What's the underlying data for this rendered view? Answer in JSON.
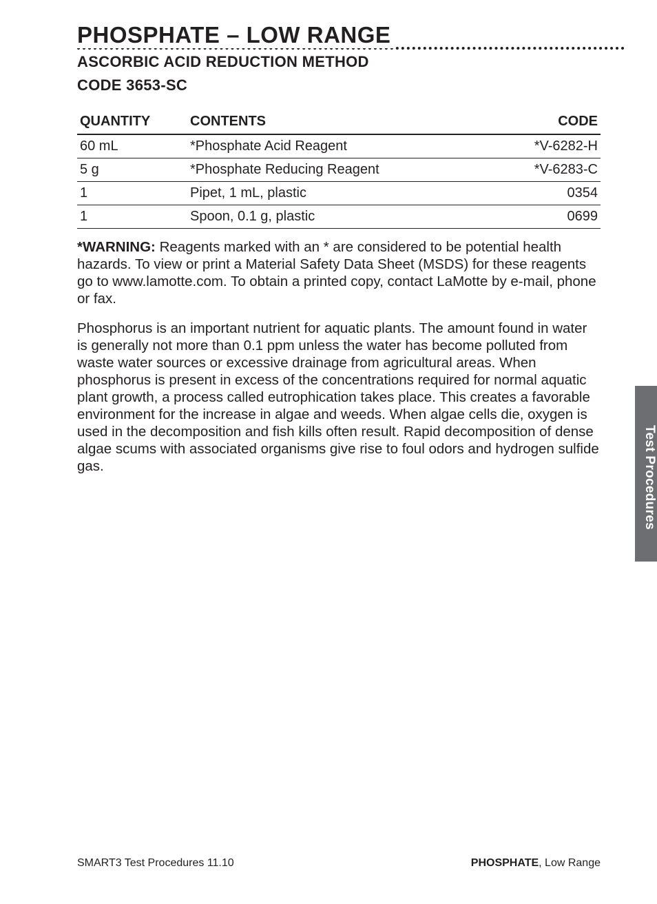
{
  "header": {
    "title": "PHOSPHATE – LOW RANGE",
    "subtitle_line1": "ASCORBIC ACID REDUCTION METHOD",
    "subtitle_line2": "CODE 3653-SC"
  },
  "table": {
    "columns": [
      "QUANTITY",
      "CONTENTS",
      "CODE"
    ],
    "rows": [
      [
        "60 mL",
        "*Phosphate Acid Reagent",
        "*V-6282-H"
      ],
      [
        "5 g",
        "*Phosphate Reducing Reagent",
        "*V-6283-C"
      ],
      [
        "1",
        "Pipet, 1 mL, plastic",
        "0354"
      ],
      [
        "1",
        "Spoon, 0.1 g, plastic",
        "0699"
      ]
    ],
    "header_border_color": "#231f20",
    "row_border_color": "#231f20",
    "fontsize": 20
  },
  "warning": {
    "label": "*WARNING:",
    "text": "Reagents marked with an * are considered to be potential health hazards. To view or print a Material Safety Data Sheet (MSDS) for these reagents go to www.lamotte.com. To obtain a printed copy, contact LaMotte by e-mail, phone or fax."
  },
  "body": {
    "text": "Phosphorus is an important nutrient for aquatic plants. The amount found in water is generally not more than 0.1 ppm unless the water has become polluted from waste water sources or excessive drainage from agricultural areas. When phosphorus is present in excess of the concentrations required for normal aquatic plant growth, a process called eutrophication takes place. This creates a favorable environment for the increase in algae and weeds. When algae cells die, oxygen is used in the decomposition and fish kills often result. Rapid decomposition of dense algae scums with associated organisms give rise to foul odors and hydrogen sulfide gas."
  },
  "side_tab": "Test Procedures",
  "footer": {
    "left": "SMART3 Test Procedures 11.10",
    "right_bold": "PHOSPHATE",
    "right_rest": ", Low Range"
  },
  "colors": {
    "text": "#231f20",
    "background": "#ffffff",
    "tab_bg": "#6d6e71",
    "tab_text": "#ffffff"
  },
  "typography": {
    "title_fontsize": 33,
    "subtitle_fontsize": 22,
    "body_fontsize": 20.5,
    "footer_fontsize": 16,
    "font_family": "Helvetica"
  }
}
